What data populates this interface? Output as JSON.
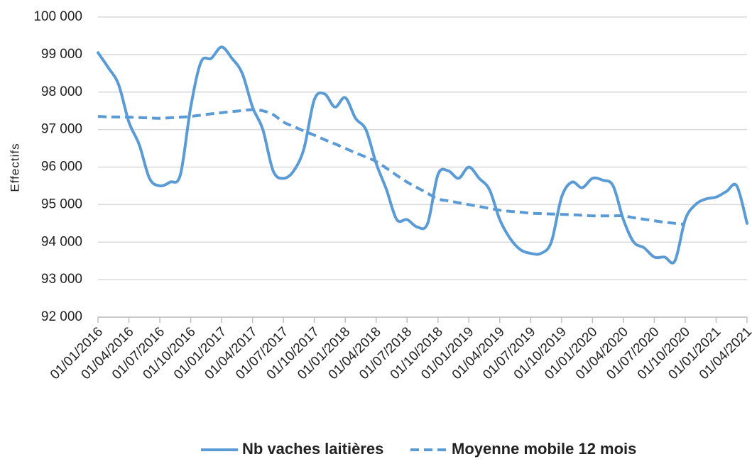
{
  "chart_data": {
    "type": "line",
    "y_label": "Effectifs",
    "categories": [
      "01/01/2016",
      null,
      null,
      "01/04/2016",
      null,
      null,
      "01/07/2016",
      null,
      null,
      "01/10/2016",
      null,
      null,
      "01/01/2017",
      null,
      null,
      "01/04/2017",
      null,
      null,
      "01/07/2017",
      null,
      null,
      "01/10/2017",
      null,
      null,
      "01/01/2018",
      null,
      null,
      "01/04/2018",
      null,
      null,
      "01/07/2018",
      null,
      null,
      "01/10/2018",
      null,
      null,
      "01/01/2019",
      null,
      null,
      "01/04/2019",
      null,
      null,
      "01/07/2019",
      null,
      null,
      "01/10/2019",
      null,
      null,
      "01/01/2020",
      null,
      null,
      "01/04/2020",
      null,
      null,
      "01/07/2020",
      null,
      null,
      "01/10/2020",
      null,
      null,
      "01/01/2021",
      null,
      null,
      "01/04/2021"
    ],
    "series": [
      {
        "name": "Nb vaches laitières",
        "color": "#5b9bd5",
        "dashed": false,
        "values": [
          99050,
          98650,
          98200,
          97200,
          96600,
          95700,
          95500,
          95600,
          95800,
          97600,
          98800,
          98900,
          99200,
          98900,
          98500,
          97600,
          97000,
          95900,
          95700,
          95900,
          96500,
          97800,
          97950,
          97600,
          97850,
          97300,
          97000,
          96100,
          95400,
          94600,
          94600,
          94400,
          94500,
          95800,
          95900,
          95700,
          96000,
          95700,
          95400,
          94600,
          94100,
          93800,
          93700,
          93700,
          94000,
          95200,
          95600,
          95450,
          95700,
          95650,
          95500,
          94600,
          94000,
          93850,
          93600,
          93600,
          93500,
          94600,
          95000,
          95150,
          95200,
          95350,
          95500,
          94500
        ]
      },
      {
        "name": "Moyenne mobile 12 mois",
        "color": "#5b9bd5",
        "dashed": true,
        "values": [
          97350,
          97340,
          97335,
          97330,
          97320,
          97310,
          97300,
          97315,
          97330,
          97350,
          97385,
          97420,
          97450,
          97480,
          97505,
          97530,
          97500,
          97400,
          97200,
          97080,
          96960,
          96850,
          96730,
          96620,
          96500,
          96380,
          96270,
          96150,
          95970,
          95780,
          95600,
          95450,
          95300,
          95150,
          95100,
          95050,
          95000,
          94950,
          94900,
          94850,
          94820,
          94800,
          94770,
          94760,
          94750,
          94740,
          94730,
          94715,
          94700,
          94700,
          94700,
          94700,
          94650,
          94610,
          94570,
          94530,
          94500,
          94470,
          null,
          null,
          null,
          null,
          null,
          null
        ]
      }
    ],
    "ylim": [
      92000,
      100000
    ],
    "yticks": [
      {
        "value": 92000,
        "label": "92 000"
      },
      {
        "value": 93000,
        "label": "93 000"
      },
      {
        "value": 94000,
        "label": "94 000"
      },
      {
        "value": 95000,
        "label": "95 000"
      },
      {
        "value": 96000,
        "label": "96 000"
      },
      {
        "value": 97000,
        "label": "97 000"
      },
      {
        "value": 98000,
        "label": "98 000"
      },
      {
        "value": 99000,
        "label": "99 000"
      },
      {
        "value": 100000,
        "label": "100 000"
      }
    ],
    "grid": true,
    "legend": "bottom"
  }
}
